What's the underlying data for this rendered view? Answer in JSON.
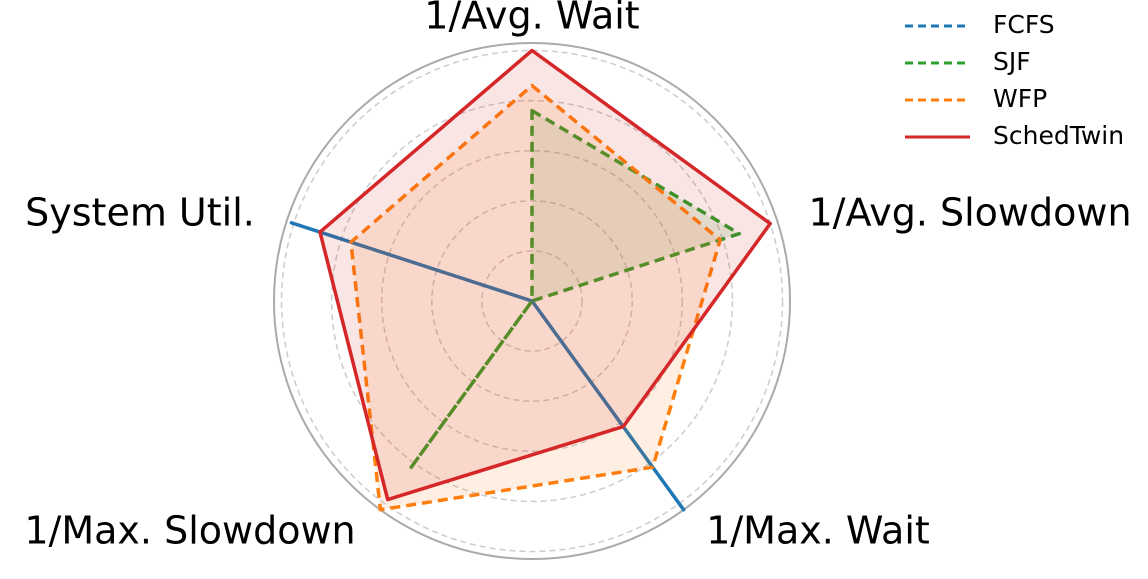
{
  "chart_data": {
    "type": "radar",
    "categories": [
      "1/Avg. Wait",
      "1/Avg. Slowdown",
      "1/Max. Wait",
      "1/Max. Slowdown",
      "System Util."
    ],
    "series": [
      {
        "name": "FCFS",
        "color": "#1f77b4",
        "dash": true,
        "values": [
          0,
          0,
          1.03,
          0,
          1.01
        ]
      },
      {
        "name": "SJF",
        "color": "#2ca02c",
        "dash": true,
        "values": [
          0.76,
          0.87,
          0,
          0.83,
          0
        ]
      },
      {
        "name": "WFP",
        "color": "#ff7f0e",
        "dash": true,
        "values": [
          0.86,
          0.79,
          0.82,
          1.03,
          0.76
        ]
      },
      {
        "name": "SchedTwin",
        "color": "#d62728",
        "dash": false,
        "values": [
          1.0,
          1.0,
          0.62,
          0.98,
          0.89
        ]
      }
    ],
    "ylim": [
      0,
      1.03
    ],
    "yticks": [
      0.2,
      0.4,
      0.6,
      0.8,
      1.0
    ],
    "grid": true,
    "legend": "upper right"
  }
}
